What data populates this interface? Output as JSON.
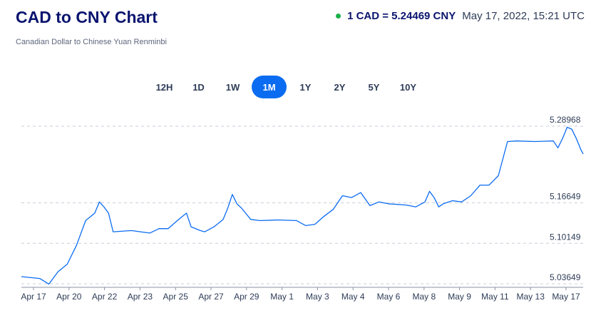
{
  "header": {
    "title": "CAD to CNY Chart",
    "subtitle": "Canadian Dollar to Chinese Yuan Renminbi",
    "rate": "1 CAD = 5.24469 CNY",
    "timestamp": "May 17, 2022, 15:21 UTC",
    "status_color": "#1bb04a"
  },
  "tabs": [
    {
      "label": "12H",
      "active": false
    },
    {
      "label": "1D",
      "active": false
    },
    {
      "label": "1W",
      "active": false
    },
    {
      "label": "1M",
      "active": true
    },
    {
      "label": "1Y",
      "active": false
    },
    {
      "label": "2Y",
      "active": false
    },
    {
      "label": "5Y",
      "active": false
    },
    {
      "label": "10Y",
      "active": false
    }
  ],
  "chart_data": {
    "type": "line",
    "series": [
      {
        "color": "#0b6cf1",
        "points": [
          [
            "2022-04-17",
            5.048
          ],
          [
            "2022-04-18",
            5.045
          ],
          [
            "2022-04-18T12",
            5.036
          ],
          [
            "2022-04-19",
            5.056
          ],
          [
            "2022-04-19T12",
            5.068
          ],
          [
            "2022-04-20",
            5.098
          ],
          [
            "2022-04-20T12",
            5.138
          ],
          [
            "2022-04-21",
            5.15
          ],
          [
            "2022-04-21T06",
            5.168
          ],
          [
            "2022-04-21T12",
            5.16
          ],
          [
            "2022-04-21T18",
            5.15
          ],
          [
            "2022-04-22",
            5.12
          ],
          [
            "2022-04-23",
            5.122
          ],
          [
            "2022-04-24",
            5.118
          ],
          [
            "2022-04-24T12",
            5.125
          ],
          [
            "2022-04-25",
            5.125
          ],
          [
            "2022-04-25T12",
            5.138
          ],
          [
            "2022-04-26",
            5.15
          ],
          [
            "2022-04-26T06",
            5.128
          ],
          [
            "2022-04-26T18",
            5.122
          ],
          [
            "2022-04-27",
            5.12
          ],
          [
            "2022-04-27T12",
            5.128
          ],
          [
            "2022-04-28",
            5.14
          ],
          [
            "2022-04-28T06",
            5.158
          ],
          [
            "2022-04-28T12",
            5.18
          ],
          [
            "2022-04-28T18",
            5.165
          ],
          [
            "2022-04-29",
            5.158
          ],
          [
            "2022-04-29T12",
            5.14
          ],
          [
            "2022-04-30",
            5.138
          ],
          [
            "2022-05-01",
            5.139
          ],
          [
            "2022-05-02",
            5.138
          ],
          [
            "2022-05-02T12",
            5.13
          ],
          [
            "2022-05-03",
            5.132
          ],
          [
            "2022-05-03T12",
            5.145
          ],
          [
            "2022-05-04",
            5.156
          ],
          [
            "2022-05-04T12",
            5.178
          ],
          [
            "2022-05-05",
            5.175
          ],
          [
            "2022-05-05T12",
            5.183
          ],
          [
            "2022-05-06",
            5.162
          ],
          [
            "2022-05-06T12",
            5.168
          ],
          [
            "2022-05-07",
            5.165
          ],
          [
            "2022-05-08",
            5.163
          ],
          [
            "2022-05-08T12",
            5.16
          ],
          [
            "2022-05-09",
            5.168
          ],
          [
            "2022-05-09T06",
            5.185
          ],
          [
            "2022-05-09T12",
            5.175
          ],
          [
            "2022-05-09T18",
            5.16
          ],
          [
            "2022-05-10",
            5.165
          ],
          [
            "2022-05-10T12",
            5.17
          ],
          [
            "2022-05-11",
            5.168
          ],
          [
            "2022-05-11T12",
            5.178
          ],
          [
            "2022-05-12",
            5.195
          ],
          [
            "2022-05-12T12",
            5.195
          ],
          [
            "2022-05-13",
            5.21
          ],
          [
            "2022-05-13T12",
            5.265
          ],
          [
            "2022-05-14",
            5.266
          ],
          [
            "2022-05-15",
            5.265
          ],
          [
            "2022-05-16",
            5.266
          ],
          [
            "2022-05-16T06",
            5.255
          ],
          [
            "2022-05-16T12",
            5.27
          ],
          [
            "2022-05-16T18",
            5.288
          ],
          [
            "2022-05-17",
            5.285
          ],
          [
            "2022-05-17T06",
            5.27
          ],
          [
            "2022-05-17T12",
            5.252
          ],
          [
            "2022-05-17T15",
            5.245
          ]
        ]
      }
    ],
    "y_ticks": [
      "5.28968",
      "5.16649",
      "5.10149",
      "5.03649"
    ],
    "x_ticks": [
      "Apr 17",
      "Apr 20",
      "Apr 22",
      "Apr 23",
      "Apr 25",
      "Apr 27",
      "Apr 29",
      "May 1",
      "May 3",
      "May 4",
      "May 6",
      "May 8",
      "May 9",
      "May 11",
      "May 13",
      "May 17"
    ],
    "ylim": [
      5.03649,
      5.28968
    ],
    "xlim": [
      "2022-04-17",
      "2022-05-17T15"
    ],
    "grid": "horizontal dashed"
  }
}
